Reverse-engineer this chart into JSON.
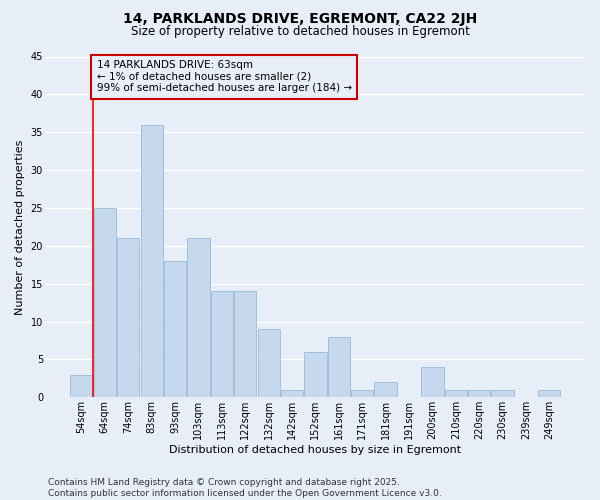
{
  "title": "14, PARKLANDS DRIVE, EGREMONT, CA22 2JH",
  "subtitle": "Size of property relative to detached houses in Egremont",
  "xlabel": "Distribution of detached houses by size in Egremont",
  "ylabel": "Number of detached properties",
  "categories": [
    "54sqm",
    "64sqm",
    "74sqm",
    "83sqm",
    "93sqm",
    "103sqm",
    "113sqm",
    "122sqm",
    "132sqm",
    "142sqm",
    "152sqm",
    "161sqm",
    "171sqm",
    "181sqm",
    "191sqm",
    "200sqm",
    "210sqm",
    "220sqm",
    "230sqm",
    "239sqm",
    "249sqm"
  ],
  "values": [
    3,
    25,
    21,
    36,
    18,
    21,
    14,
    14,
    9,
    1,
    6,
    8,
    1,
    2,
    0,
    4,
    1,
    1,
    1,
    0,
    1
  ],
  "bar_color": "#c5d8ed",
  "bar_edge_color": "#8ab4d4",
  "background_color": "#e8eef7",
  "grid_color": "#ffffff",
  "annotation_box_color": "#cc0000",
  "annotation_line1": "14 PARKLANDS DRIVE: 63sqm",
  "annotation_line2": "← 1% of detached houses are smaller (2)",
  "annotation_line3": "99% of semi-detached houses are larger (184) →",
  "ylim": [
    0,
    45
  ],
  "yticks": [
    0,
    5,
    10,
    15,
    20,
    25,
    30,
    35,
    40,
    45
  ],
  "footer": "Contains HM Land Registry data © Crown copyright and database right 2025.\nContains public sector information licensed under the Open Government Licence v3.0.",
  "title_fontsize": 10,
  "subtitle_fontsize": 8.5,
  "axis_label_fontsize": 8,
  "tick_fontsize": 7,
  "annotation_fontsize": 7.5,
  "footer_fontsize": 6.5
}
